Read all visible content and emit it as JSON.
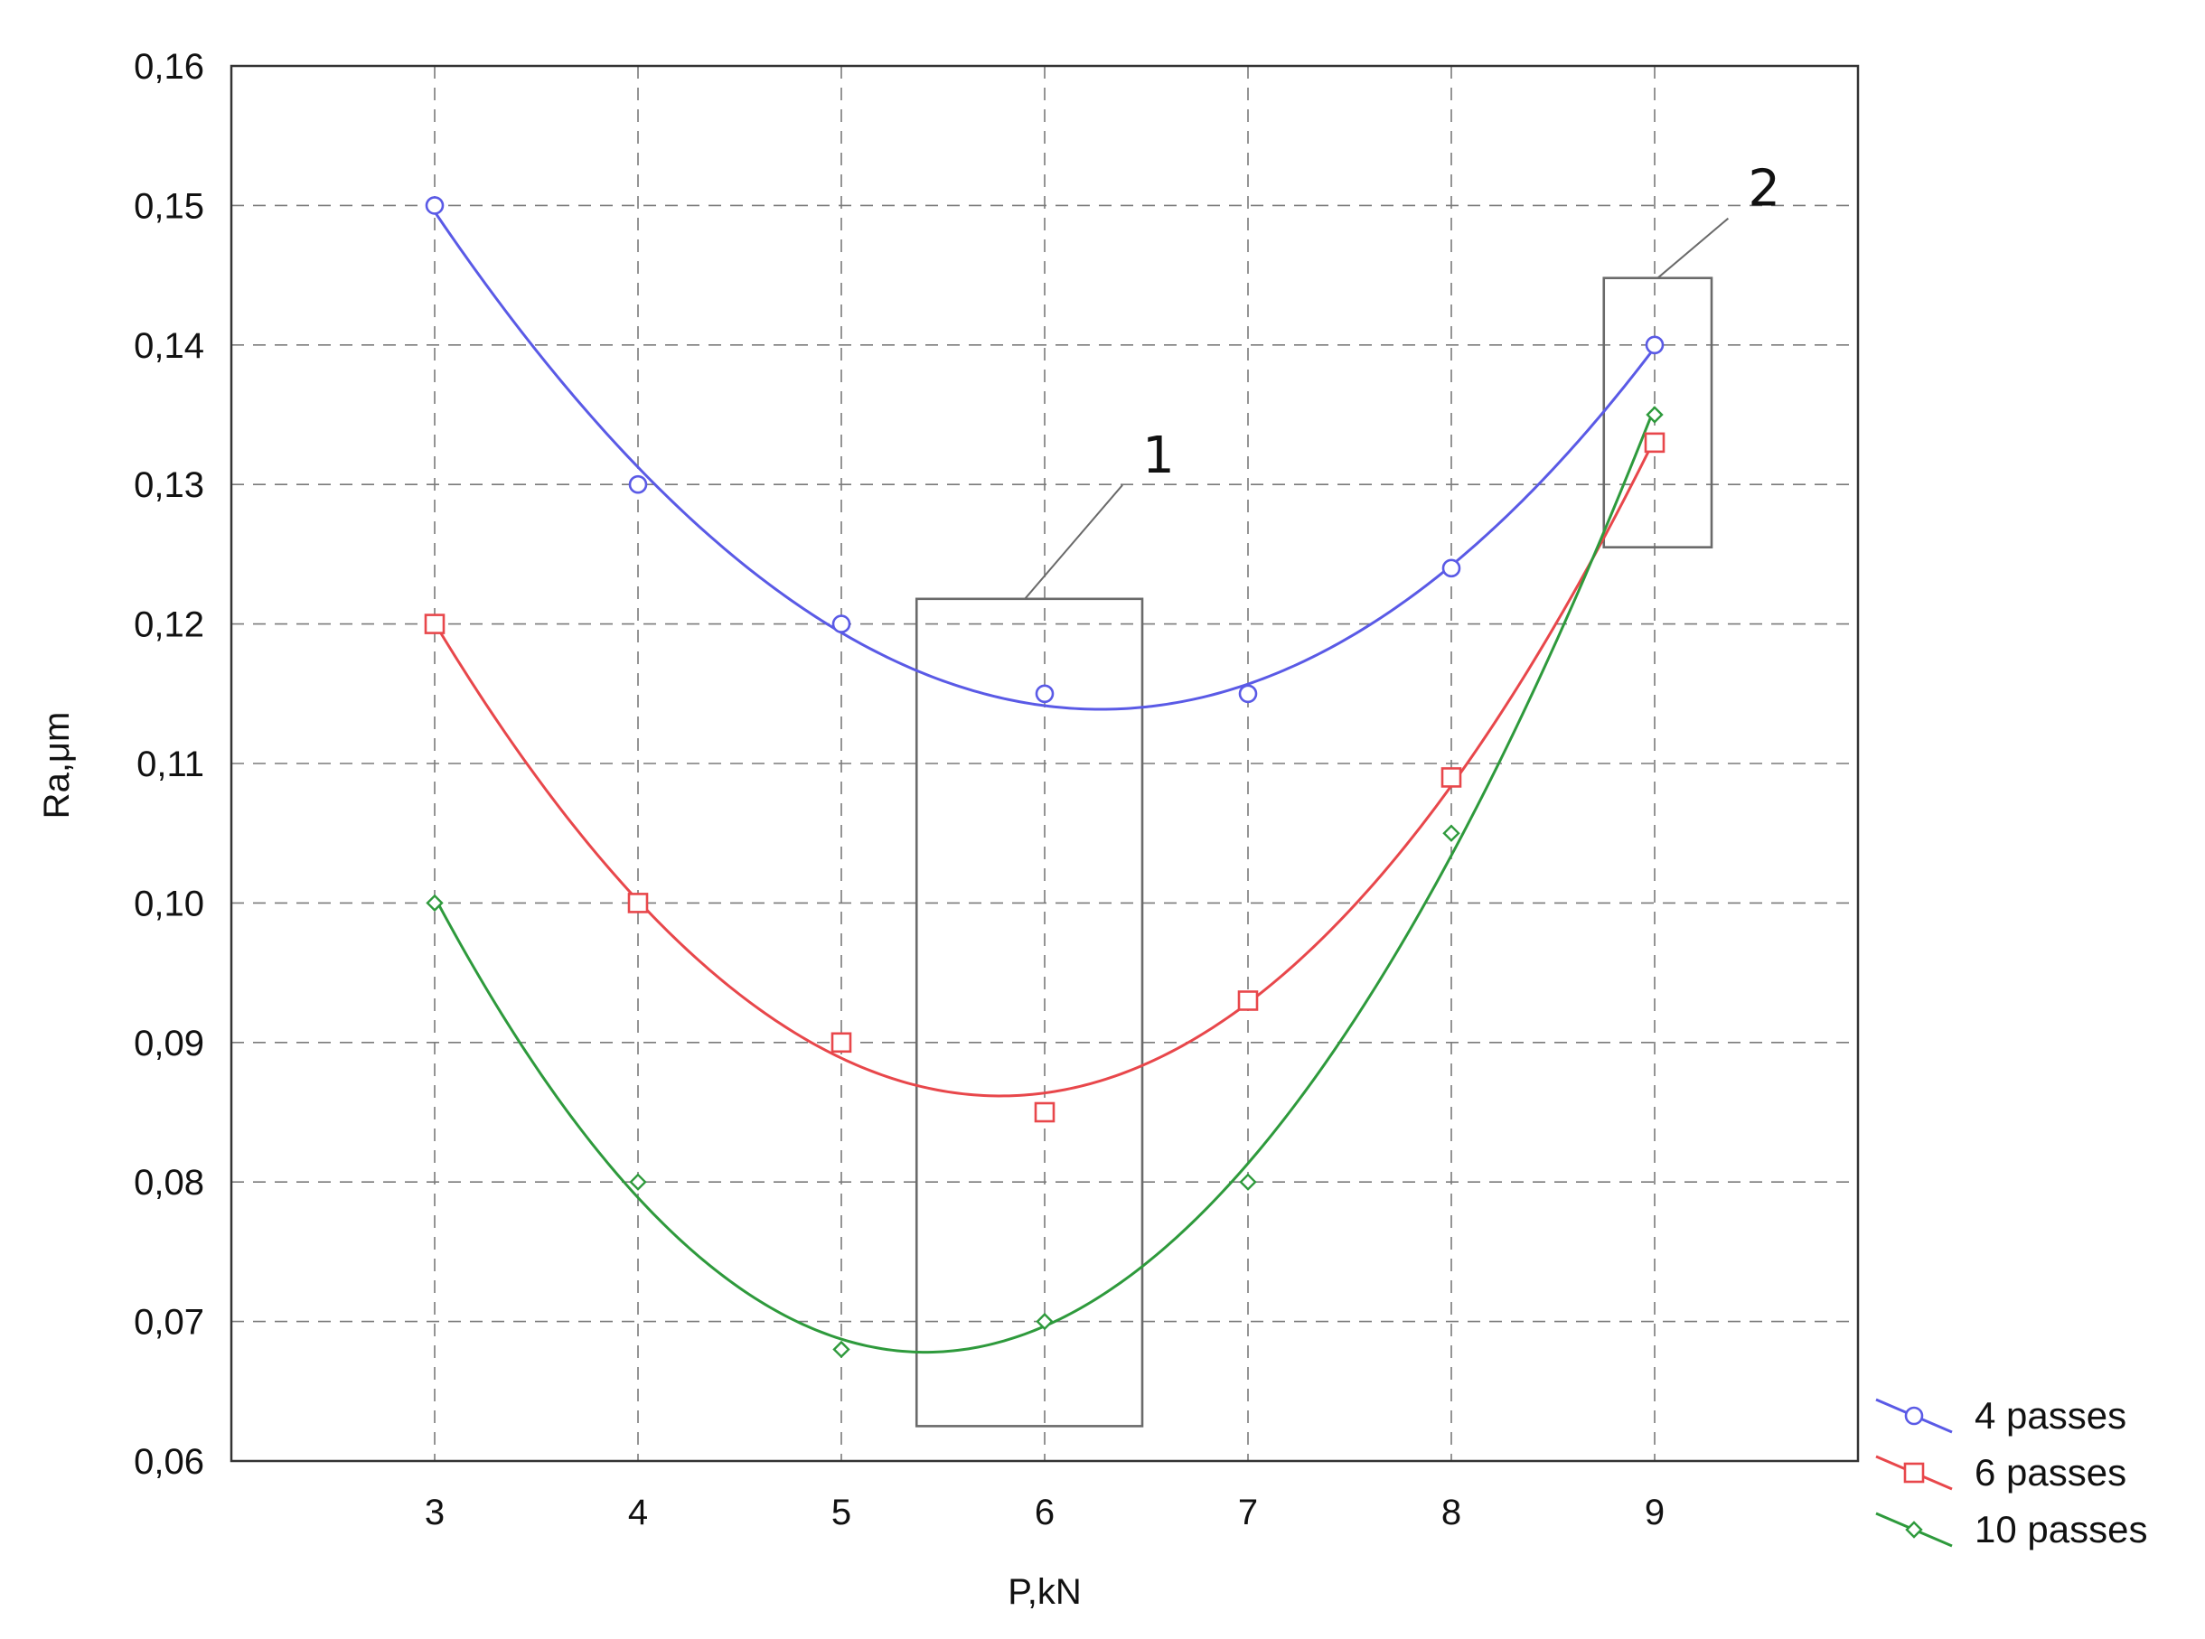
{
  "chart_data": {
    "type": "line",
    "title": "",
    "xlabel": "P,kN",
    "ylabel": "Ra,μm",
    "x": [
      3,
      4,
      5,
      6,
      7,
      8,
      9
    ],
    "xlim": [
      2,
      10
    ],
    "ylim": [
      0.06,
      0.16
    ],
    "x_ticks": [
      "3",
      "4",
      "5",
      "6",
      "7",
      "8",
      "9"
    ],
    "y_ticks": [
      "0,06",
      "0,07",
      "0,08",
      "0,09",
      "0,10",
      "0,11",
      "0,12",
      "0,13",
      "0,14",
      "0,15",
      "0,16"
    ],
    "grid": true,
    "legend_position": "bottom-right, outside plot",
    "series": [
      {
        "name": "4 passes",
        "values": [
          0.15,
          0.13,
          0.12,
          0.115,
          0.115,
          0.124,
          0.14
        ],
        "color": "#5a5ae6",
        "marker": "circle"
      },
      {
        "name": "6 passes",
        "values": [
          0.12,
          0.1,
          0.09,
          0.085,
          0.093,
          0.109,
          0.133
        ],
        "color": "#e8474b",
        "marker": "square"
      },
      {
        "name": "10 passes",
        "values": [
          0.1,
          0.08,
          0.068,
          0.07,
          0.08,
          0.105,
          0.135
        ],
        "color": "#2e9a3c",
        "marker": "diamond"
      }
    ],
    "annotations": [
      {
        "label": "1",
        "x_range": [
          5.37,
          6.48
        ],
        "y_range": [
          0.0625,
          0.1218
        ]
      },
      {
        "label": "2",
        "x_range": [
          8.75,
          9.28
        ],
        "y_range": [
          0.1255,
          0.1448
        ]
      }
    ]
  }
}
